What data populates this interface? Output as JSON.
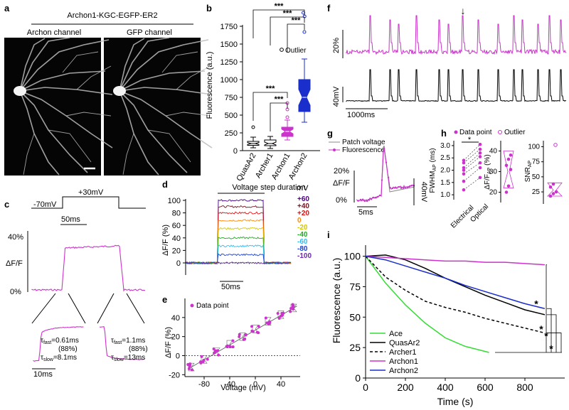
{
  "panels": {
    "a": {
      "label": "a",
      "title": "Archon1-KGC-EGFP-ER2",
      "left_caption": "Archon channel",
      "right_caption": "GFP  channel"
    },
    "b": {
      "label": "b"
    },
    "c": {
      "label": "c",
      "v_low": "-70mV",
      "v_high": "+30mV",
      "scale_t": "50ms",
      "y_top": "40%",
      "y_label": "ΔF/F",
      "y_bottom": "0%",
      "zoom_scale": "10ms",
      "fit_rise": [
        "τ",
        "fast",
        "=0.61ms",
        "(88%)",
        "τ",
        "slow",
        "=8.1ms"
      ],
      "fit_decay": [
        "τ",
        "fast",
        "=1.1ms",
        "(88%)",
        "τ",
        "slow",
        "=13ms"
      ]
    },
    "d": {
      "label": "d",
      "title": "Voltage step duration",
      "scale_t": "50ms"
    },
    "e": {
      "label": "e"
    },
    "f": {
      "label": "f",
      "scale_f": "20%",
      "scale_v": "40mV",
      "scale_t": "1000ms",
      "arrow": "↓"
    },
    "g": {
      "label": "g",
      "legend_patch": "Patch voltage",
      "legend_fluor": "Fluorescence",
      "scale_f": "20%",
      "y_label": "ΔF/F",
      "zero": "0%",
      "scale_t": "5ms",
      "scale_v": "40mV"
    },
    "h": {
      "label": "h",
      "legend_point": "Data point",
      "legend_outlier": "Outlier",
      "y1_label": "FWHM",
      "y1_sub": "AP",
      "y1_unit": " (ms)",
      "y2_label": "ΔF/F",
      "y2_sub": "AP",
      "y2_unit": " (%)",
      "y3_label": "SNR",
      "y3_sub": "AP",
      "x_cats": [
        "Electrical",
        "Optical"
      ],
      "sig": "*"
    },
    "i": {
      "label": "i"
    }
  },
  "chart_data": [
    {
      "panel": "b",
      "type": "box",
      "ylabel": "Fluorescence (a.u.)",
      "ylim": [
        0,
        2000
      ],
      "yticks": [
        0,
        250,
        500,
        750,
        1000,
        1250,
        1500,
        1750
      ],
      "categories": [
        "QuasAr2",
        "Archer1",
        "Archon1",
        "Archon2"
      ],
      "colors": [
        "#000000",
        "#000000",
        "#cc33cc",
        "#1a2ecc"
      ],
      "boxes": [
        {
          "min": 40,
          "q1": 75,
          "median": 100,
          "q3": 130,
          "max": 190,
          "outliers": [
            330
          ]
        },
        {
          "min": 30,
          "q1": 70,
          "median": 100,
          "q3": 150,
          "max": 200,
          "outliers": []
        },
        {
          "min": 150,
          "q1": 200,
          "median": 270,
          "q3": 330,
          "max": 430,
          "outliers": [
            470,
            580,
            670
          ]
        },
        {
          "min": 400,
          "q1": 550,
          "median": 750,
          "q3": 1000,
          "max": 1290,
          "outliers": [
            1670,
            1890,
            1940
          ]
        }
      ],
      "legend": "Outlier",
      "significance": "***"
    },
    {
      "panel": "d",
      "type": "line",
      "ylabel": "ΔF/F (%)",
      "yticks": [
        0,
        20,
        40,
        60,
        80,
        100
      ],
      "ylim": [
        -15,
        115
      ],
      "legend_title": "mV",
      "series": [
        {
          "name": "+60",
          "color": "#4b0082",
          "level": 100
        },
        {
          "name": "+40",
          "color": "#7a1020",
          "level": 90
        },
        {
          "name": "+20",
          "color": "#dd1111",
          "level": 80
        },
        {
          "name": "0",
          "color": "#ff8800",
          "level": 68
        },
        {
          "name": "-20",
          "color": "#d4c800",
          "level": 55
        },
        {
          "name": "-40",
          "color": "#22aa22",
          "level": 40
        },
        {
          "name": "-60",
          "color": "#33bbee",
          "level": 27
        },
        {
          "name": "-80",
          "color": "#1a40d0",
          "level": 13
        },
        {
          "name": "-100",
          "color": "#6a2aaa",
          "level": 0
        }
      ]
    },
    {
      "panel": "e",
      "type": "scatter",
      "xlabel": "Voltage (mV)",
      "ylabel": "ΔF/F (%)",
      "xlim": [
        -110,
        70
      ],
      "ylim": [
        -22,
        60
      ],
      "xticks": [
        -80,
        -40,
        0,
        40
      ],
      "yticks": [
        -20,
        0,
        20,
        40
      ],
      "legend": "Data point",
      "means": [
        {
          "x": -100,
          "y": -12
        },
        {
          "x": -80,
          "y": -4
        },
        {
          "x": -60,
          "y": 4
        },
        {
          "x": -40,
          "y": 12
        },
        {
          "x": -20,
          "y": 20
        },
        {
          "x": 0,
          "y": 28
        },
        {
          "x": 20,
          "y": 36
        },
        {
          "x": 40,
          "y": 43
        },
        {
          "x": 60,
          "y": 50
        }
      ]
    },
    {
      "panel": "h",
      "type": "scatter",
      "yticks_fwhm": [
        "1.0",
        "1.5",
        "2.0",
        "2.5",
        "3.0"
      ],
      "yticks_dff": [
        "20",
        "30",
        "40"
      ],
      "yticks_snr": [
        "25",
        "50",
        "75",
        "100"
      ],
      "fwhm_electrical": [
        1.2,
        1.55,
        1.85,
        2.0,
        2.1,
        2.3,
        2.4
      ],
      "fwhm_optical": [
        1.7,
        2.1,
        2.3,
        2.55,
        2.7,
        2.85,
        3.05
      ],
      "dff_ap": [
        20,
        23,
        31,
        33,
        36,
        38
      ],
      "snr_ap": [
        18,
        22,
        25,
        33,
        38
      ],
      "snr_outlier": [
        103
      ]
    },
    {
      "panel": "i",
      "type": "line",
      "xlabel": "Time (s)",
      "ylabel": "Fluorescence (a.u.)",
      "xlim": [
        0,
        1000
      ],
      "ylim": [
        0,
        105
      ],
      "xticks": [
        0,
        200,
        400,
        600,
        800
      ],
      "yticks": [
        0,
        25,
        50,
        75,
        100
      ],
      "significance": "*",
      "series": [
        {
          "name": "Ace",
          "color": "#33dd33",
          "dash": "",
          "x": [
            0,
            100,
            200,
            300,
            400,
            500,
            620
          ],
          "y": [
            100,
            78,
            60,
            45,
            33,
            26,
            21
          ]
        },
        {
          "name": "QuasAr2",
          "color": "#000000",
          "dash": "",
          "x": [
            0,
            100,
            200,
            300,
            400,
            500,
            600,
            700,
            800,
            900
          ],
          "y": [
            100,
            101,
            97,
            90,
            82,
            75,
            68,
            62,
            56,
            52
          ]
        },
        {
          "name": "Archer1",
          "color": "#000000",
          "dash": "4,3",
          "x": [
            0,
            100,
            200,
            300,
            400,
            500,
            600,
            700,
            800,
            900
          ],
          "y": [
            100,
            83,
            72,
            63,
            58,
            54,
            49,
            45,
            41,
            37
          ]
        },
        {
          "name": "Archon1",
          "color": "#cc33cc",
          "dash": "",
          "x": [
            0,
            100,
            200,
            300,
            400,
            500,
            600,
            700,
            800,
            900
          ],
          "y": [
            100,
            99,
            98,
            97,
            96,
            96,
            95,
            95,
            94,
            93
          ]
        },
        {
          "name": "Archon2",
          "color": "#1a2ecc",
          "dash": "",
          "x": [
            0,
            100,
            200,
            300,
            400,
            500,
            600,
            700,
            800,
            900
          ],
          "y": [
            100,
            97,
            92,
            87,
            82,
            76,
            71,
            66,
            61,
            57
          ]
        }
      ]
    }
  ]
}
